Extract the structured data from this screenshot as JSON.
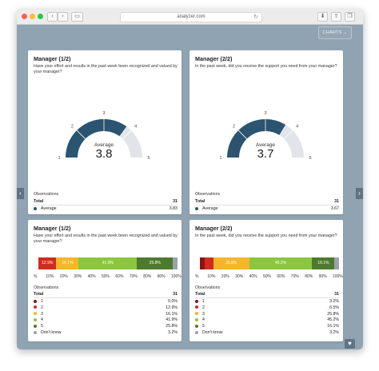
{
  "browser": {
    "url": "analyzer.com",
    "reload_glyph": "↻",
    "back_glyph": "‹",
    "forward_glyph": "›",
    "sidebar_glyph": "▭",
    "download_glyph": "⬇",
    "share_glyph": "⇪",
    "tabs_glyph": "❐"
  },
  "toolbar": {
    "charts_label": "CHARTS",
    "charts_chevron": "⌄"
  },
  "nav": {
    "prev_glyph": "‹",
    "next_glyph": "›"
  },
  "colors": {
    "gauge_fill": "#2b5470",
    "gauge_track": "#e1e4e8",
    "scale_colors": [
      "#8a1414",
      "#cf2c1e",
      "#f6b629",
      "#8cc63f",
      "#4e7a2e",
      "#9aa2aa"
    ]
  },
  "cards": [
    {
      "title": "Manager (1/2)",
      "question": "Have your effort and results in the past week been recognized and valued by your manager?",
      "gauge": {
        "average_label": "Average",
        "average_value": "3.8",
        "value": 3.8,
        "scale_min": 1,
        "scale_max": 5,
        "ticks": [
          "1",
          "2",
          "3",
          "4",
          "5"
        ]
      },
      "observations": {
        "label": "Observations",
        "total_label": "Total",
        "total_value": "31",
        "average_label": "Average",
        "average_value": "3.83"
      }
    },
    {
      "title": "Manager (2/2)",
      "question": "In the past week, did you receive the support you need from your manager?",
      "gauge": {
        "average_label": "Average",
        "average_value": "3.7",
        "value": 3.7,
        "scale_min": 1,
        "scale_max": 5,
        "ticks": [
          "1",
          "2",
          "3",
          "4",
          "5"
        ]
      },
      "observations": {
        "label": "Observations",
        "total_label": "Total",
        "total_value": "31",
        "average_label": "Average",
        "average_value": "3.67"
      }
    }
  ],
  "distributions": [
    {
      "title": "Manager (1/2)",
      "question": "Have your effort and results in the past week been recognized and valued by your manager?",
      "segments": [
        {
          "label": "",
          "pct": 0.0
        },
        {
          "label": "12.9%",
          "pct": 12.9
        },
        {
          "label": "16.1%",
          "pct": 16.1
        },
        {
          "label": "41.9%",
          "pct": 41.9
        },
        {
          "label": "25.8%",
          "pct": 25.8
        },
        {
          "label": "",
          "pct": 3.2
        }
      ],
      "axis_ticks": [
        "%",
        "10%",
        "20%",
        "30%",
        "40%",
        "50%",
        "60%",
        "70%",
        "80%",
        "90%",
        "100%"
      ],
      "observations_label": "Observations",
      "total_label": "Total",
      "total_value": "31",
      "rows": [
        {
          "label": "1",
          "value": "0.0%"
        },
        {
          "label": "2",
          "value": "12.9%"
        },
        {
          "label": "3",
          "value": "16.1%"
        },
        {
          "label": "4",
          "value": "41.9%"
        },
        {
          "label": "5",
          "value": "25.8%"
        },
        {
          "label": "Don't know",
          "value": "3.2%"
        }
      ]
    },
    {
      "title": "Manager (2/2)",
      "question": "In the past week, did you receive the support you need from your manager?",
      "segments": [
        {
          "label": "",
          "pct": 3.2
        },
        {
          "label": "",
          "pct": 6.5
        },
        {
          "label": "25.8%",
          "pct": 25.8
        },
        {
          "label": "45.2%",
          "pct": 45.2
        },
        {
          "label": "16.1%",
          "pct": 16.1
        },
        {
          "label": "",
          "pct": 3.2
        }
      ],
      "axis_ticks": [
        "%",
        "10%",
        "20%",
        "30%",
        "40%",
        "50%",
        "60%",
        "70%",
        "80%",
        "90%",
        "100%"
      ],
      "observations_label": "Observations",
      "total_label": "Total",
      "total_value": "31",
      "rows": [
        {
          "label": "1",
          "value": "3.2%"
        },
        {
          "label": "2",
          "value": "6.5%"
        },
        {
          "label": "3",
          "value": "25.8%"
        },
        {
          "label": "4",
          "value": "45.2%"
        },
        {
          "label": "5",
          "value": "16.1%"
        },
        {
          "label": "Don't know",
          "value": "3.2%"
        }
      ]
    }
  ],
  "footer": {
    "heart_glyph": "♥"
  }
}
